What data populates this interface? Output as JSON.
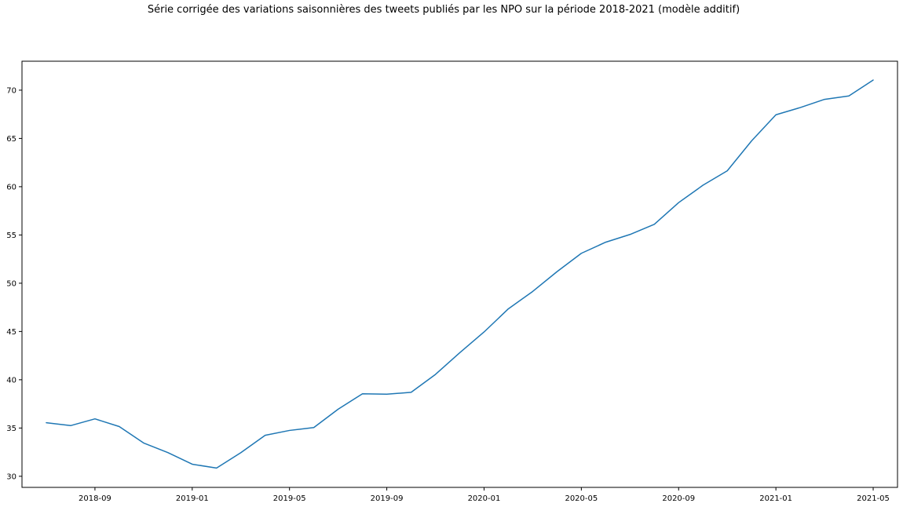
{
  "chart_data": {
    "type": "line",
    "title": "Série corrigée des variations saisonnières des tweets publiés par les NPO sur la période 2018-2021 (modèle additif)",
    "xlabel": "",
    "ylabel": "",
    "x": [
      "2018-07",
      "2018-08",
      "2018-09",
      "2018-10",
      "2018-11",
      "2018-12",
      "2019-01",
      "2019-02",
      "2019-03",
      "2019-04",
      "2019-05",
      "2019-06",
      "2019-07",
      "2019-08",
      "2019-09",
      "2019-10",
      "2019-11",
      "2019-12",
      "2020-01",
      "2020-02",
      "2020-03",
      "2020-04",
      "2020-05",
      "2020-06",
      "2020-07",
      "2020-08",
      "2020-09",
      "2020-10",
      "2020-11",
      "2020-12",
      "2021-01",
      "2021-02",
      "2021-03",
      "2021-04",
      "2021-05"
    ],
    "series": [
      {
        "color": "#1f77b4",
        "values": [
          35.55,
          35.25,
          35.95,
          35.15,
          33.45,
          32.45,
          31.25,
          30.85,
          32.45,
          34.25,
          34.75,
          35.05,
          36.95,
          38.55,
          38.5,
          38.7,
          40.55,
          42.8,
          44.95,
          47.35,
          49.15,
          51.2,
          53.1,
          54.25,
          55.05,
          56.1,
          58.35,
          60.15,
          61.65,
          64.75,
          67.45,
          68.2,
          69.05,
          69.4,
          71.05
        ]
      }
    ],
    "xticks": [
      {
        "label": "2018-09",
        "value": "2018-09"
      },
      {
        "label": "2019-01",
        "value": "2019-01"
      },
      {
        "label": "2019-05",
        "value": "2019-05"
      },
      {
        "label": "2019-09",
        "value": "2019-09"
      },
      {
        "label": "2020-01",
        "value": "2020-01"
      },
      {
        "label": "2020-05",
        "value": "2020-05"
      },
      {
        "label": "2020-09",
        "value": "2020-09"
      },
      {
        "label": "2021-01",
        "value": "2021-01"
      },
      {
        "label": "2021-05",
        "value": "2021-05"
      }
    ],
    "yticks": [
      {
        "label": "30",
        "value": 30
      },
      {
        "label": "35",
        "value": 35
      },
      {
        "label": "40",
        "value": 40
      },
      {
        "label": "45",
        "value": 45
      },
      {
        "label": "50",
        "value": 50
      },
      {
        "label": "55",
        "value": 55
      },
      {
        "label": "60",
        "value": 60
      },
      {
        "label": "65",
        "value": 65
      },
      {
        "label": "70",
        "value": 70
      }
    ],
    "xlim": [
      "2018-06",
      "2021-06"
    ],
    "ylim": [
      28.85,
      73.0
    ],
    "grid": false,
    "legend": "none"
  }
}
